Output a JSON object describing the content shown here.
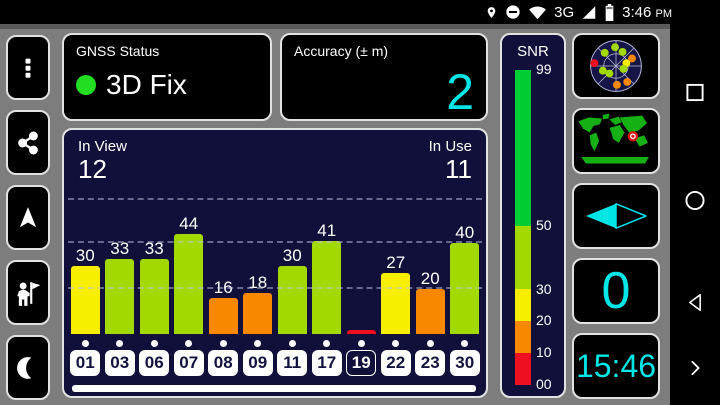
{
  "colors": {
    "accent_cyan": "#00e6e6",
    "fix_green": "#22dd22",
    "panel_navy": "#10103a"
  },
  "status_bar": {
    "network": "3G",
    "time": "3:46",
    "meridiem": "PM"
  },
  "gnss": {
    "title": "GNSS Status",
    "status": "3D Fix"
  },
  "accuracy": {
    "title": "Accuracy (± m)",
    "value": "2"
  },
  "satellites": {
    "in_view_label": "In View",
    "in_view": "12",
    "in_use_label": "In Use",
    "in_use": "11"
  },
  "chart_data": {
    "type": "bar",
    "categories": [
      "01",
      "03",
      "06",
      "07",
      "08",
      "09",
      "11",
      "17",
      "19",
      "22",
      "23",
      "30"
    ],
    "values": [
      30,
      33,
      33,
      44,
      16,
      18,
      30,
      41,
      2,
      27,
      20,
      40
    ],
    "value_labels": [
      "30",
      "33",
      "33",
      "44",
      "16",
      "18",
      "30",
      "41",
      "",
      "27",
      "20",
      "40"
    ],
    "bar_colors": [
      "#f8ee00",
      "#a2d900",
      "#a2d900",
      "#a2d900",
      "#f78800",
      "#f78800",
      "#a2d900",
      "#a2d900",
      "#ee1020",
      "#f8ee00",
      "#f78800",
      "#a2d900"
    ],
    "used_in_fix": [
      true,
      true,
      true,
      true,
      true,
      true,
      true,
      true,
      false,
      true,
      true,
      true
    ],
    "ylabel": "SNR",
    "ylim": [
      0,
      60
    ],
    "gridlines": [
      20,
      40,
      60
    ],
    "grid": true,
    "legend": false
  },
  "snr_scale": {
    "title": "SNR",
    "segments": [
      {
        "from": 50,
        "to": 99,
        "color": "#00cc33"
      },
      {
        "from": 30,
        "to": 50,
        "color": "#a2d900"
      },
      {
        "from": 20,
        "to": 30,
        "color": "#f8ee00"
      },
      {
        "from": 10,
        "to": 20,
        "color": "#f78800"
      },
      {
        "from": 0,
        "to": 10,
        "color": "#ee1020"
      }
    ],
    "ticks": [
      {
        "label": "99",
        "value": 99
      },
      {
        "label": "50",
        "value": 50
      },
      {
        "label": "30",
        "value": 30
      },
      {
        "label": "20",
        "value": 20
      },
      {
        "label": "10",
        "value": 10
      },
      {
        "label": "00",
        "value": 0
      }
    ]
  },
  "right_toolbar": {
    "speed_value": "0",
    "clock_value": "15:46"
  }
}
